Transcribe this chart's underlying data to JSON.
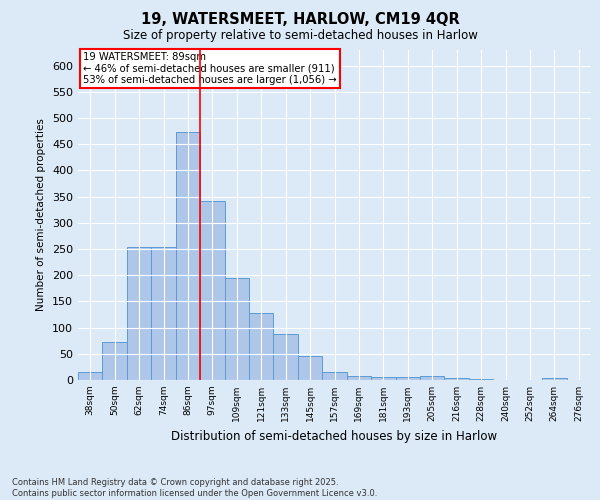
{
  "title1": "19, WATERSMEET, HARLOW, CM19 4QR",
  "title2": "Size of property relative to semi-detached houses in Harlow",
  "xlabel": "Distribution of semi-detached houses by size in Harlow",
  "ylabel": "Number of semi-detached properties",
  "categories": [
    "38sqm",
    "50sqm",
    "62sqm",
    "74sqm",
    "86sqm",
    "97sqm",
    "109sqm",
    "121sqm",
    "133sqm",
    "145sqm",
    "157sqm",
    "169sqm",
    "181sqm",
    "193sqm",
    "205sqm",
    "216sqm",
    "228sqm",
    "240sqm",
    "252sqm",
    "264sqm",
    "276sqm"
  ],
  "values": [
    16,
    72,
    254,
    253,
    473,
    341,
    195,
    128,
    87,
    46,
    16,
    8,
    5,
    6,
    7,
    4,
    2,
    0,
    0,
    3,
    0
  ],
  "bar_color": "#aec6e8",
  "bar_edge_color": "#5b9bd5",
  "vline_x": 4.5,
  "vline_color": "red",
  "annotation_text": "19 WATERSMEET: 89sqm\n← 46% of semi-detached houses are smaller (911)\n53% of semi-detached houses are larger (1,056) →",
  "annotation_box_color": "white",
  "annotation_box_edge": "red",
  "ylim": [
    0,
    630
  ],
  "yticks": [
    0,
    50,
    100,
    150,
    200,
    250,
    300,
    350,
    400,
    450,
    500,
    550,
    600
  ],
  "footer": "Contains HM Land Registry data © Crown copyright and database right 2025.\nContains public sector information licensed under the Open Government Licence v3.0.",
  "bg_color": "#dce9f7",
  "plot_bg_color": "#dce9f7",
  "grid_color": "white"
}
